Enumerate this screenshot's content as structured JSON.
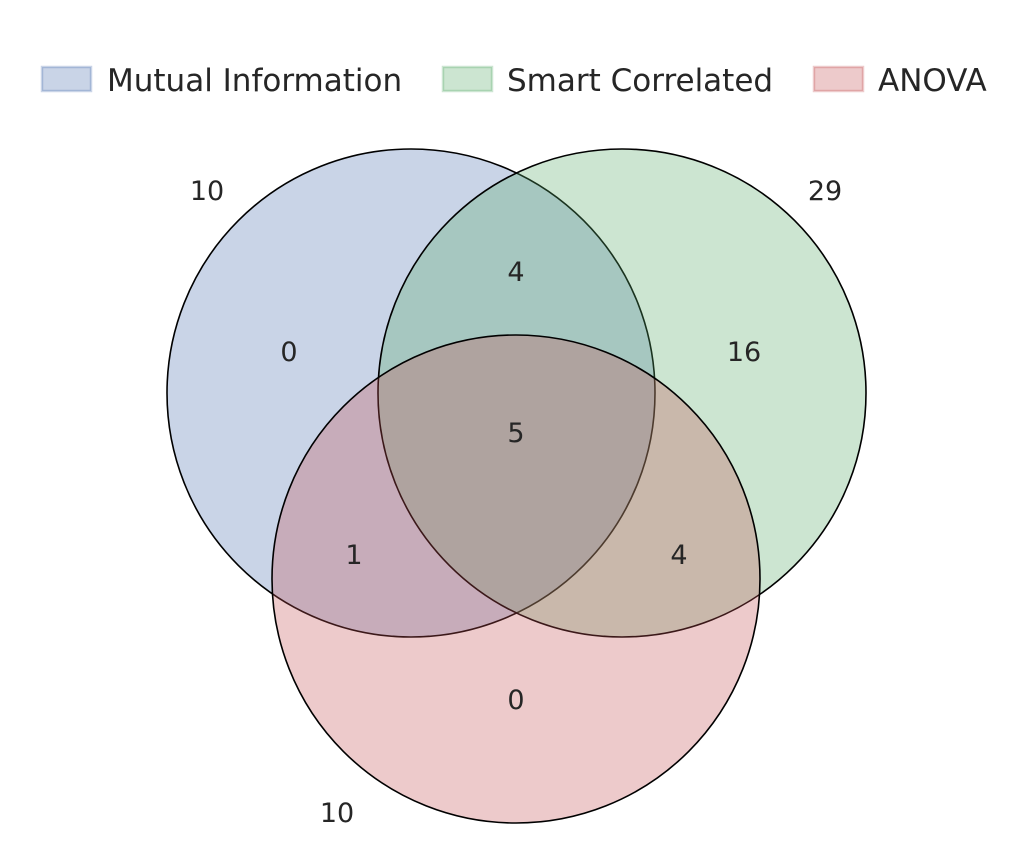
{
  "legend": [
    {
      "label": "Mutual Information",
      "color": "#4c72b0"
    },
    {
      "label": "Smart Correlated",
      "color": "#55a868"
    },
    {
      "label": "ANOVA",
      "color": "#c44e52"
    }
  ],
  "sets": [
    {
      "name": "Mutual Information",
      "total": "10",
      "color": "#4c72b0"
    },
    {
      "name": "Smart Correlated",
      "total": "29",
      "color": "#55a868"
    },
    {
      "name": "ANOVA",
      "total": "10",
      "color": "#c44e52"
    }
  ],
  "regions": {
    "mi_only": "0",
    "sc_only": "16",
    "anova_only": "0",
    "mi_sc": "4",
    "mi_anova": "1",
    "sc_anova": "4",
    "all_three": "5"
  }
}
